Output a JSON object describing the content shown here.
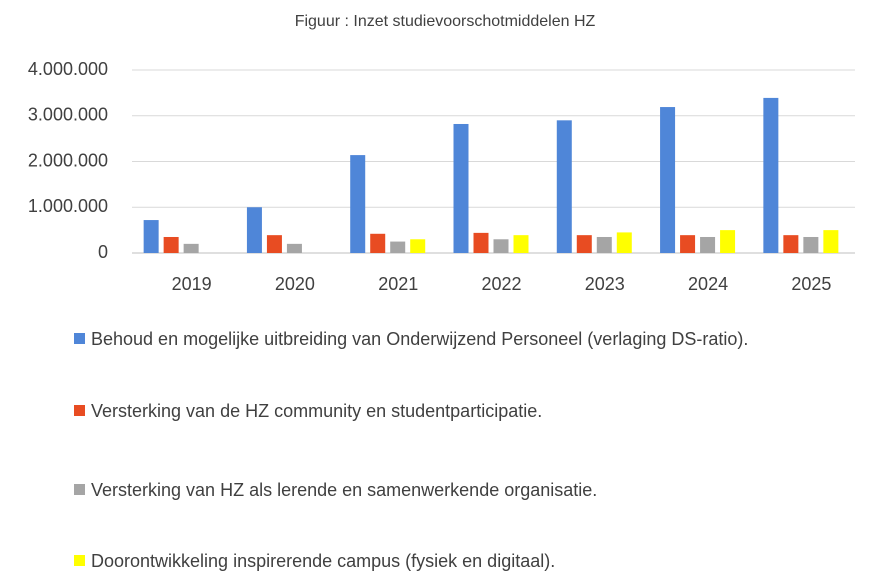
{
  "chart_data": {
    "type": "bar",
    "title": "Figuur : Inzet studievoorschotmiddelen HZ",
    "categories": [
      "2019",
      "2020",
      "2021",
      "2022",
      "2023",
      "2024",
      "2025"
    ],
    "series": [
      {
        "name": "Behoud en mogelijke uitbreiding van Onderwijzend Personeel (verlaging DS-ratio).",
        "color": "#4f86d8",
        "values": [
          720000,
          1000000,
          2140000,
          2820000,
          2900000,
          3190000,
          3390000
        ]
      },
      {
        "name": "Versterking van de HZ community en studentparticipatie.",
        "color": "#e84c22",
        "values": [
          350000,
          390000,
          420000,
          440000,
          390000,
          390000,
          390000
        ]
      },
      {
        "name": "Versterking van HZ als lerende en samenwerkende organisatie.",
        "color": "#a5a5a5",
        "values": [
          200000,
          200000,
          250000,
          300000,
          350000,
          350000,
          350000
        ]
      },
      {
        "name": "Doorontwikkeling inspirerende campus (fysiek en digitaal).",
        "color": "#ffff00",
        "values": [
          null,
          null,
          300000,
          390000,
          450000,
          500000,
          500000
        ]
      }
    ],
    "ylim": [
      0,
      4000000
    ],
    "yticks": [
      0,
      {
        "value": 1000000,
        "label": "1.000.000"
      },
      {
        "value": 2000000,
        "label": "2.000.000"
      },
      {
        "value": 3000000,
        "label": "3.000.000"
      },
      {
        "value": 4000000,
        "label": "4.000.000"
      }
    ],
    "grid": true
  }
}
